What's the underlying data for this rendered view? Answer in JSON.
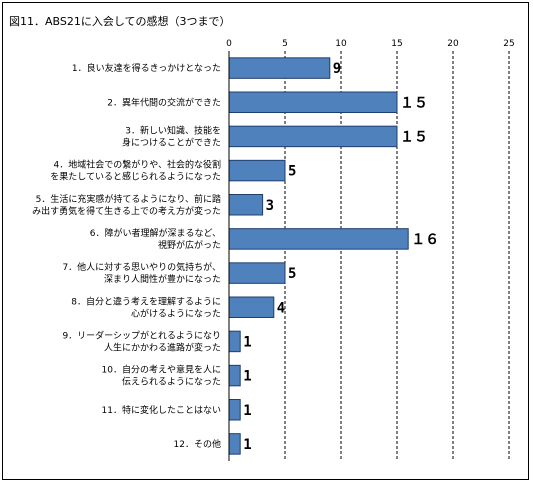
{
  "chart_data": {
    "type": "bar",
    "orientation": "horizontal",
    "title": "図11．ABS21に入会しての感想（3つまで）",
    "categories": [
      [
        "1．良い友達を得るきっかけとなった"
      ],
      [
        "2．異年代間の交流ができた"
      ],
      [
        "3．新しい知識、技能を",
        "身につけることができた"
      ],
      [
        "4．地域社会での繋がりや、社会的な役割",
        "を果たしていると感じられるようになった"
      ],
      [
        "5．生活に充実感が持てるようになり、前に踏",
        "み出す勇気を得て生きる上での考え方が変った"
      ],
      [
        "6．障がい者理解が深まるなど、",
        "視野が広がった"
      ],
      [
        "7．他人に対する思いやりの気持ちが、",
        "深まり人間性が豊かになった"
      ],
      [
        "8．自分と違う考えを理解するように",
        "心がけるようになった"
      ],
      [
        "9．リーダーシップがとれるようになり",
        "人生にかかわる進路が変った"
      ],
      [
        "10．自分の考えや意見を人に",
        "伝えられるようになった"
      ],
      [
        "11．特に変化したことはない"
      ],
      [
        "12．その他"
      ]
    ],
    "values": [
      9,
      15,
      15,
      5,
      3,
      16,
      5,
      4,
      1,
      1,
      1,
      1
    ],
    "value_labels": [
      "9",
      "１５",
      "１５",
      "5",
      "3",
      "１６",
      "5",
      "4",
      "1",
      "1",
      "1",
      "1"
    ],
    "xlim": [
      0,
      25
    ],
    "xticks": [
      "0",
      "5",
      "10",
      "15",
      "20",
      "25"
    ],
    "xtick_values": [
      0,
      5,
      10,
      15,
      20,
      25
    ],
    "grid": "vertical-dashed",
    "legend": "none",
    "colors": {
      "bar": "#4f81bd",
      "bar_edge": "#1f3f6f",
      "grid": "#000000"
    }
  }
}
